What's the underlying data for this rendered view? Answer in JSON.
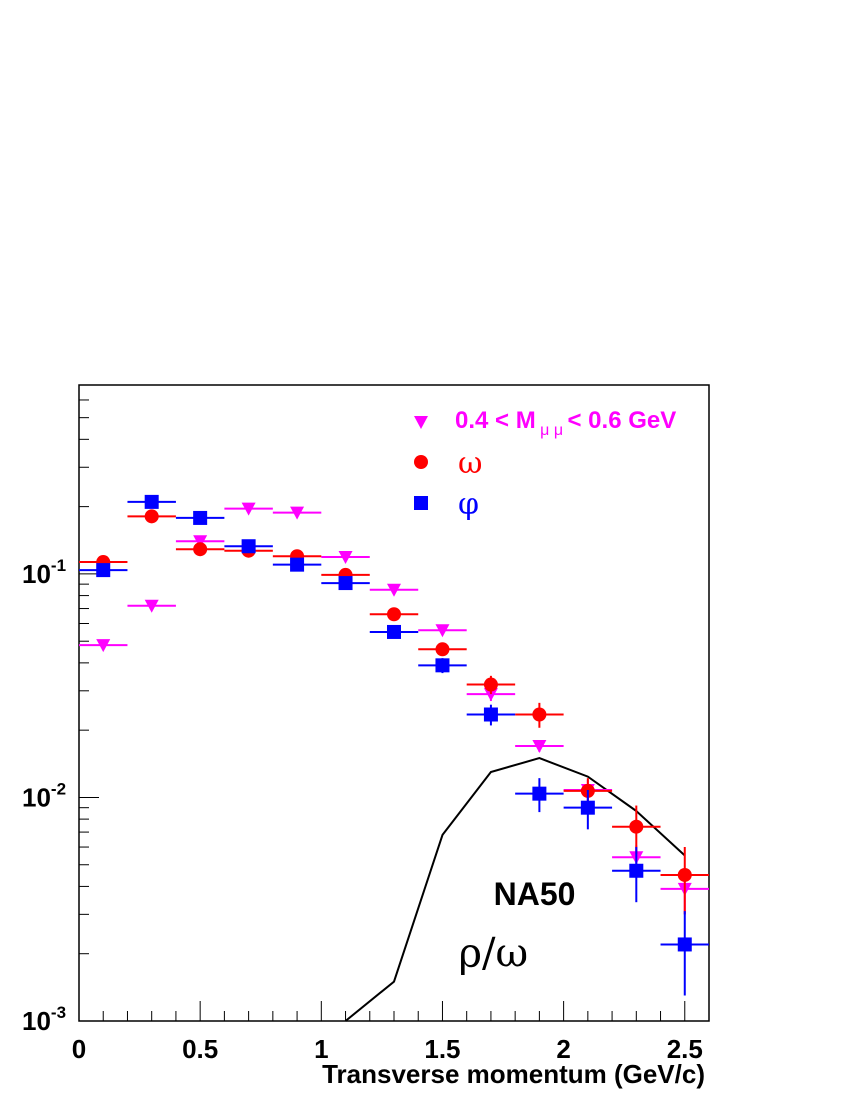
{
  "chart_data": {
    "type": "scatter",
    "title": "",
    "xlabel": "Transverse momentum (GeV/c)",
    "ylabel": "",
    "xlim": [
      0,
      2.6
    ],
    "ylim": [
      0.001,
      0.7
    ],
    "log_y": true,
    "grid": false,
    "legend_position": "top-right",
    "x_ticks": [
      "0",
      "0.5",
      "1",
      "1.5",
      "2",
      "2.5"
    ],
    "y_ticks": [
      {
        "value": 0.001,
        "base": "10",
        "exp": "-3"
      },
      {
        "value": 0.01,
        "base": "10",
        "exp": "-2"
      },
      {
        "value": 0.1,
        "base": "10",
        "exp": "-1"
      }
    ],
    "series": [
      {
        "name": "0.4 < M",
        "name_sub": "μ μ",
        "name_suffix": " < 0.6 GeV",
        "color": "#ff00ff",
        "marker": "triangle-down",
        "x": [
          0.1,
          0.3,
          0.5,
          0.7,
          0.9,
          1.1,
          1.3,
          1.5,
          1.7,
          1.9,
          2.1,
          2.3,
          2.5
        ],
        "y": [
          0.048,
          0.072,
          0.14,
          0.196,
          0.188,
          0.119,
          0.085,
          0.056,
          0.029,
          0.017,
          0.0108,
          0.0054,
          0.0039
        ],
        "xerr": 0.1,
        "yerr": [
          0.002,
          0.002,
          0.004,
          0.005,
          0.005,
          0.003,
          0.003,
          0.002,
          0.002,
          0.001,
          0.0012,
          0.0007,
          0.0009
        ]
      },
      {
        "name": "ω",
        "color": "#ff0000",
        "marker": "circle",
        "x": [
          0.1,
          0.3,
          0.5,
          0.7,
          0.9,
          1.1,
          1.3,
          1.5,
          1.7,
          1.9,
          2.1,
          2.3,
          2.5
        ],
        "y": [
          0.113,
          0.181,
          0.129,
          0.127,
          0.12,
          0.099,
          0.066,
          0.046,
          0.032,
          0.0235,
          0.0107,
          0.0074,
          0.0045
        ],
        "xerr": 0.1,
        "yerr": [
          0.003,
          0.005,
          0.004,
          0.004,
          0.004,
          0.003,
          0.003,
          0.002,
          0.003,
          0.003,
          0.0015,
          0.0018,
          0.0015
        ]
      },
      {
        "name": "φ",
        "color": "#0000ff",
        "marker": "square",
        "x": [
          0.1,
          0.3,
          0.5,
          0.7,
          0.9,
          1.1,
          1.3,
          1.5,
          1.7,
          1.9,
          2.1,
          2.3,
          2.5
        ],
        "y": [
          0.104,
          0.21,
          0.178,
          0.133,
          0.11,
          0.091,
          0.055,
          0.039,
          0.0235,
          0.0104,
          0.009,
          0.0047,
          0.0022
        ],
        "xerr": 0.1,
        "yerr": [
          0.004,
          0.006,
          0.005,
          0.004,
          0.004,
          0.003,
          0.002,
          0.003,
          0.0025,
          0.0018,
          0.0018,
          0.0013,
          0.0009
        ]
      }
    ],
    "reference_curve": {
      "color": "#000000",
      "x": [
        1.1,
        1.3,
        1.5,
        1.7,
        1.9,
        2.1,
        2.3,
        2.5
      ],
      "y": [
        0.001,
        0.0015,
        0.0068,
        0.013,
        0.015,
        0.0124,
        0.0087,
        0.0055
      ]
    },
    "annotations": [
      {
        "text": "NA50",
        "x": 1.88,
        "y": 0.0033
      },
      {
        "text": "ρ/ω",
        "x": 1.71,
        "y": 0.00175
      }
    ]
  }
}
